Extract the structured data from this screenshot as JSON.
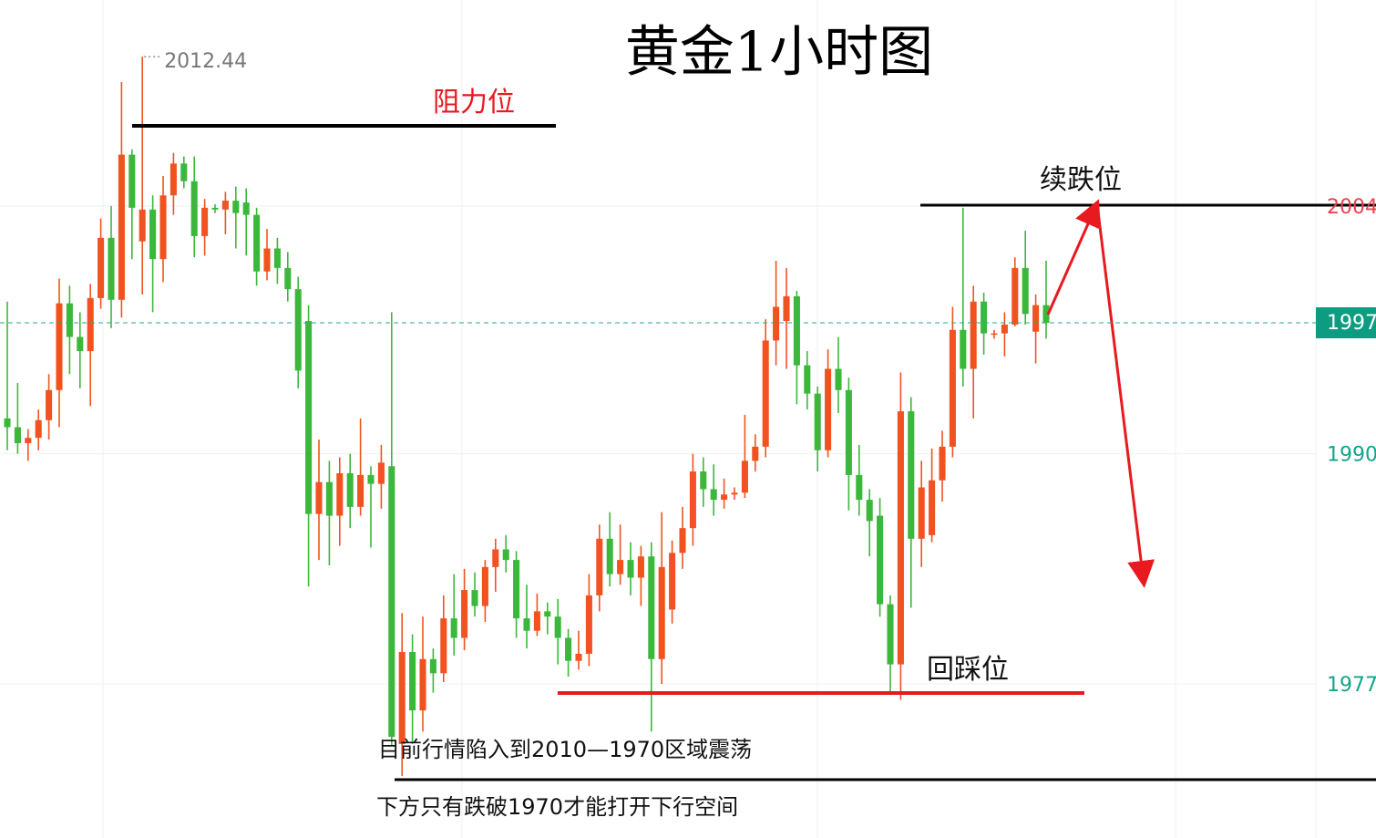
{
  "chart_data": {
    "type": "candlestick",
    "title": "黄金1小时图",
    "resistance_label": "阻力位",
    "continue_fall_label": "续跌位",
    "pullback_label": "回踩位",
    "notes": [
      "目前行情陷入到2010—1970区域震荡",
      "下方只有跌破1970才能打开下行空间"
    ],
    "ylim": [
      1968.29,
      2015.64
    ],
    "yticks": [
      2004,
      1990,
      1977
    ],
    "last_price": {
      "value": 1997.4,
      "label": "1997"
    },
    "grid": true,
    "series": [
      {
        "up_color": "#f0531f",
        "down_color": "#3bb83b",
        "open": [
          1992.0,
          1991.5,
          1990.6,
          1990.9,
          1991.9,
          1993.6,
          1998.5,
          1996.6,
          1995.8,
          1998.8,
          2002.2,
          1998.7,
          2006.9,
          2002.0,
          2003.8,
          2001.0,
          2004.6,
          2006.4,
          2005.4,
          2002.3,
          2003.9,
          2003.8,
          2004.3,
          2004.2,
          2003.5,
          2000.3,
          2001.6,
          2000.5,
          1999.3,
          1997.5,
          1986.6,
          1988.4,
          1986.5,
          1988.9,
          1987.0,
          1988.8,
          1988.3,
          1989.3,
          1973.6,
          1978.8,
          1975.5,
          1978.4,
          1977.6,
          1980.7,
          1979.6,
          1982.3,
          1981.4,
          1983.6,
          1984.6,
          1984.0,
          1980.7,
          1980.0,
          1981.1,
          1980.8,
          1979.6,
          1978.3,
          1978.7,
          1982.0,
          1985.2,
          1983.2,
          1984.0,
          1983.0,
          1984.2,
          1978.4,
          1981.2,
          1984.4,
          1985.8,
          1989.0,
          1988.0,
          1987.4,
          1987.7,
          1987.8,
          1989.6,
          1990.4,
          1996.4,
          1997.5,
          1998.9,
          1995.0,
          1993.4,
          1990.2,
          1994.8,
          1993.6,
          1988.8,
          1987.4,
          1986.5,
          1981.5,
          1978.1,
          1992.4,
          1985.2,
          1985.4,
          1988.5,
          1990.4,
          1997.0,
          1994.8,
          1998.6,
          1996.8,
          1996.8,
          1997.3,
          2000.5,
          1996.9,
          1998.4
        ],
        "high": [
          1998.6,
          1994.0,
          1991.4,
          1992.5,
          1994.5,
          1999.9,
          1999.5,
          1998.0,
          1999.6,
          2003.3,
          2004.0,
          2011.0,
          2007.2,
          2012.44,
          2004.6,
          2005.7,
          2007.0,
          2006.8,
          2006.8,
          2004.4,
          2004.1,
          2004.8,
          2005.1,
          2005.0,
          2003.9,
          2002.7,
          2002.2,
          2001.4,
          2000.0,
          1998.4,
          1990.8,
          1989.6,
          1989.8,
          1990.0,
          1992.0,
          1989.3,
          1990.5,
          1998.0,
          1981.0,
          1979.8,
          1980.8,
          1979.0,
          1982.0,
          1983.2,
          1983.5,
          1983.3,
          1984.0,
          1985.2,
          1985.4,
          1984.5,
          1982.6,
          1982.1,
          1981.6,
          1981.8,
          1980.1,
          1980.0,
          1983.2,
          1986.0,
          1986.7,
          1986.0,
          1985.0,
          1984.8,
          1985.0,
          1986.7,
          1985.1,
          1987.0,
          1990.0,
          1989.8,
          1989.4,
          1988.6,
          1988.1,
          1992.2,
          1991.1,
          1997.6,
          2000.9,
          2000.5,
          1999.2,
          1995.8,
          1993.8,
          1995.9,
          1996.6,
          1994.3,
          1990.5,
          1988.0,
          1987.5,
          1982.0,
          1994.6,
          1993.2,
          1989.6,
          1990.3,
          1991.3,
          1998.3,
          2003.9,
          1999.5,
          1999.1,
          1997.0,
          1998.0,
          2001.1,
          2002.6,
          1999.0,
          2000.9
        ],
        "low": [
          1990.2,
          1990.0,
          1989.6,
          1990.2,
          1990.8,
          1991.5,
          1994.5,
          1993.7,
          1992.7,
          1998.2,
          1997.1,
          1997.7,
          2001.0,
          1999.0,
          1998.0,
          1999.7,
          2003.5,
          2005.0,
          2001.1,
          2001.2,
          2003.6,
          2002.4,
          2001.6,
          2001.2,
          1999.5,
          1999.8,
          1999.6,
          1998.6,
          1993.7,
          1982.5,
          1984.0,
          1983.7,
          1984.8,
          1985.8,
          1986.5,
          1984.7,
          1986.9,
          1973.5,
          1971.8,
          1973.6,
          1974.3,
          1976.5,
          1977.1,
          1978.6,
          1978.9,
          1980.8,
          1980.5,
          1982.2,
          1983.3,
          1979.6,
          1979.0,
          1979.7,
          1979.8,
          1978.1,
          1977.4,
          1977.8,
          1978.0,
          1981.1,
          1982.5,
          1982.6,
          1982.0,
          1981.4,
          1974.3,
          1977.0,
          1980.4,
          1983.5,
          1984.8,
          1987.0,
          1986.5,
          1986.9,
          1987.4,
          1987.5,
          1989.0,
          1989.8,
          1995.0,
          1994.8,
          1992.8,
          1992.5,
          1989.0,
          1989.8,
          1992.3,
          1986.8,
          1986.5,
          1984.2,
          1980.8,
          1976.5,
          1976.1,
          1981.3,
          1983.6,
          1985.0,
          1987.3,
          1989.8,
          1993.8,
          1992.0,
          1995.6,
          1996.5,
          1995.5,
          1997.2,
          1997.3,
          1995.1,
          1996.5
        ],
        "close": [
          1991.5,
          1990.6,
          1990.9,
          1991.9,
          1993.6,
          1998.5,
          1996.6,
          1995.8,
          1998.8,
          2002.2,
          1998.7,
          2006.9,
          2003.9,
          2003.8,
          2001.0,
          2004.6,
          2006.4,
          2005.4,
          2002.3,
          2003.9,
          2003.8,
          2004.3,
          2003.6,
          2003.5,
          2000.3,
          2001.6,
          2000.5,
          1999.3,
          1994.7,
          1986.6,
          1988.4,
          1986.5,
          1988.9,
          1987.0,
          1988.8,
          1988.3,
          1989.5,
          1974.0,
          1978.8,
          1975.5,
          1978.4,
          1977.6,
          1980.7,
          1979.6,
          1982.3,
          1981.4,
          1983.6,
          1984.6,
          1984.0,
          1980.7,
          1980.0,
          1981.1,
          1980.8,
          1979.6,
          1978.3,
          1978.7,
          1982.0,
          1985.2,
          1983.2,
          1984.0,
          1983.0,
          1984.2,
          1978.4,
          1983.6,
          1984.4,
          1985.8,
          1989.0,
          1988.0,
          1987.4,
          1987.7,
          1987.8,
          1989.6,
          1990.4,
          1996.4,
          1998.3,
          1998.9,
          1995.0,
          1993.4,
          1990.2,
          1994.8,
          1993.6,
          1988.8,
          1987.4,
          1986.2,
          1981.5,
          1978.1,
          1992.4,
          1985.2,
          1988.1,
          1988.5,
          1990.4,
          1997.0,
          1994.8,
          1998.6,
          1996.8,
          1996.8,
          1997.3,
          2000.5,
          1997.9,
          1998.4,
          1997.4
        ]
      }
    ]
  }
}
